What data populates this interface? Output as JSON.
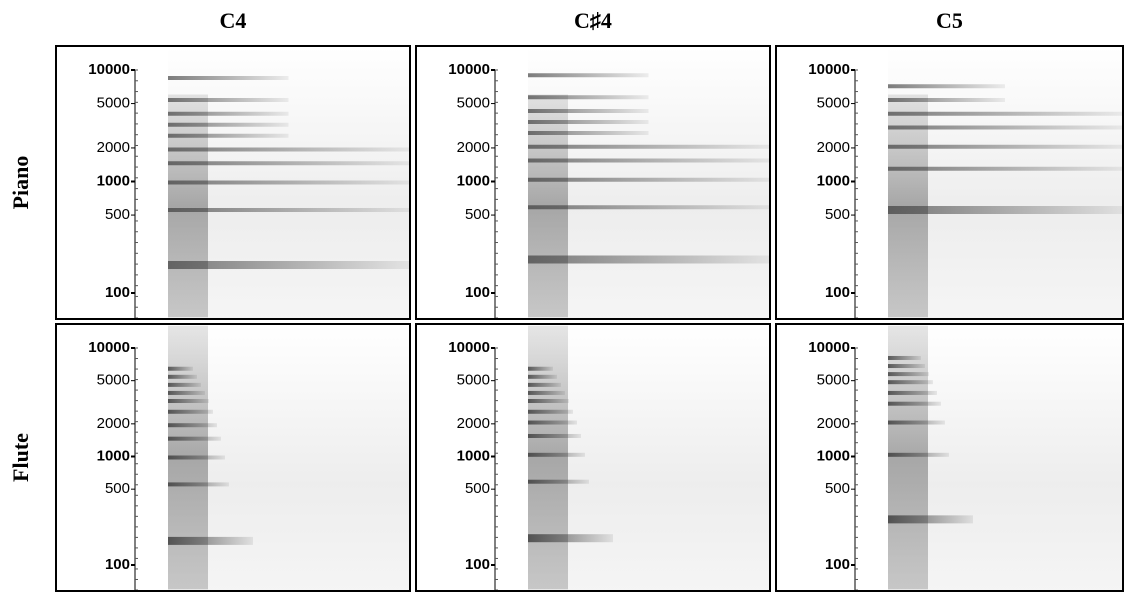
{
  "columns": [
    "C4",
    "C♯4",
    "C5"
  ],
  "rows": [
    "Piano",
    "Flute"
  ],
  "yticks": [
    100,
    500,
    1000,
    2000,
    5000,
    10000
  ]
}
